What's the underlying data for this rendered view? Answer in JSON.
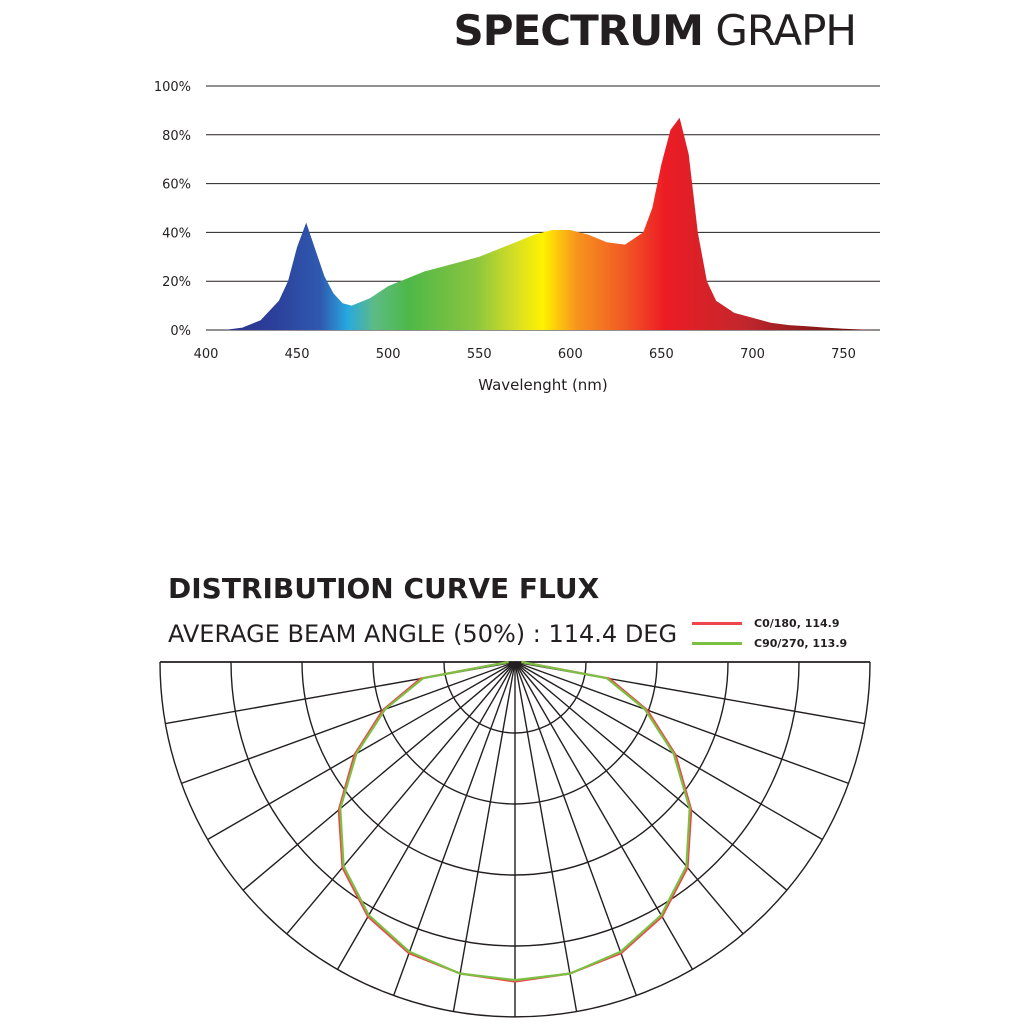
{
  "header": {
    "title_bold": "SPECTRUM",
    "title_light": "GRAPH"
  },
  "spectrum": {
    "chart_data": {
      "type": "area",
      "xlabel": "Wavelenght (nm)",
      "ylabel": "",
      "xlim": [
        400,
        770
      ],
      "ylim": [
        0,
        100
      ],
      "x_ticks": [
        "400",
        "450",
        "500",
        "550",
        "600",
        "650",
        "700",
        "750"
      ],
      "y_ticks": [
        "0%",
        "20%",
        "40%",
        "60%",
        "80%",
        "100%"
      ],
      "grid": true,
      "x": [
        400,
        410,
        420,
        430,
        440,
        445,
        450,
        455,
        460,
        465,
        470,
        475,
        480,
        490,
        500,
        510,
        520,
        530,
        540,
        550,
        560,
        570,
        580,
        590,
        600,
        610,
        620,
        630,
        640,
        645,
        650,
        655,
        660,
        665,
        670,
        675,
        680,
        690,
        700,
        710,
        720,
        730,
        740,
        750,
        760,
        770
      ],
      "y": [
        0,
        0,
        1,
        4,
        12,
        20,
        34,
        44,
        33,
        22,
        15,
        11,
        10,
        13,
        18,
        21,
        24,
        26,
        28,
        30,
        33,
        36,
        39,
        41,
        41,
        39,
        36,
        35,
        40,
        50,
        68,
        82,
        87,
        72,
        40,
        20,
        12,
        7,
        5,
        3,
        2,
        1.5,
        1,
        0.5,
        0.2,
        0
      ]
    }
  },
  "distribution": {
    "title": "DISTRIBUTION CURVE FLUX",
    "subtitle": "AVERAGE BEAM ANGLE  (50%) : 114.4 DEG",
    "chart_data": {
      "type": "polar",
      "series": [
        {
          "name": "C0/180, 114.9",
          "color": "#f0454a"
        },
        {
          "name": "C90/270, 113.9",
          "color": "#7ac143"
        }
      ],
      "angles_deg": [
        0,
        10,
        20,
        30,
        40,
        50,
        60,
        70,
        80,
        90
      ],
      "c0_180": [
        1.0,
        0.99,
        0.97,
        0.92,
        0.84,
        0.72,
        0.58,
        0.44,
        0.3,
        0.02
      ],
      "c90_270": [
        0.99,
        0.985,
        0.96,
        0.91,
        0.83,
        0.71,
        0.57,
        0.43,
        0.29,
        0.02
      ]
    }
  }
}
